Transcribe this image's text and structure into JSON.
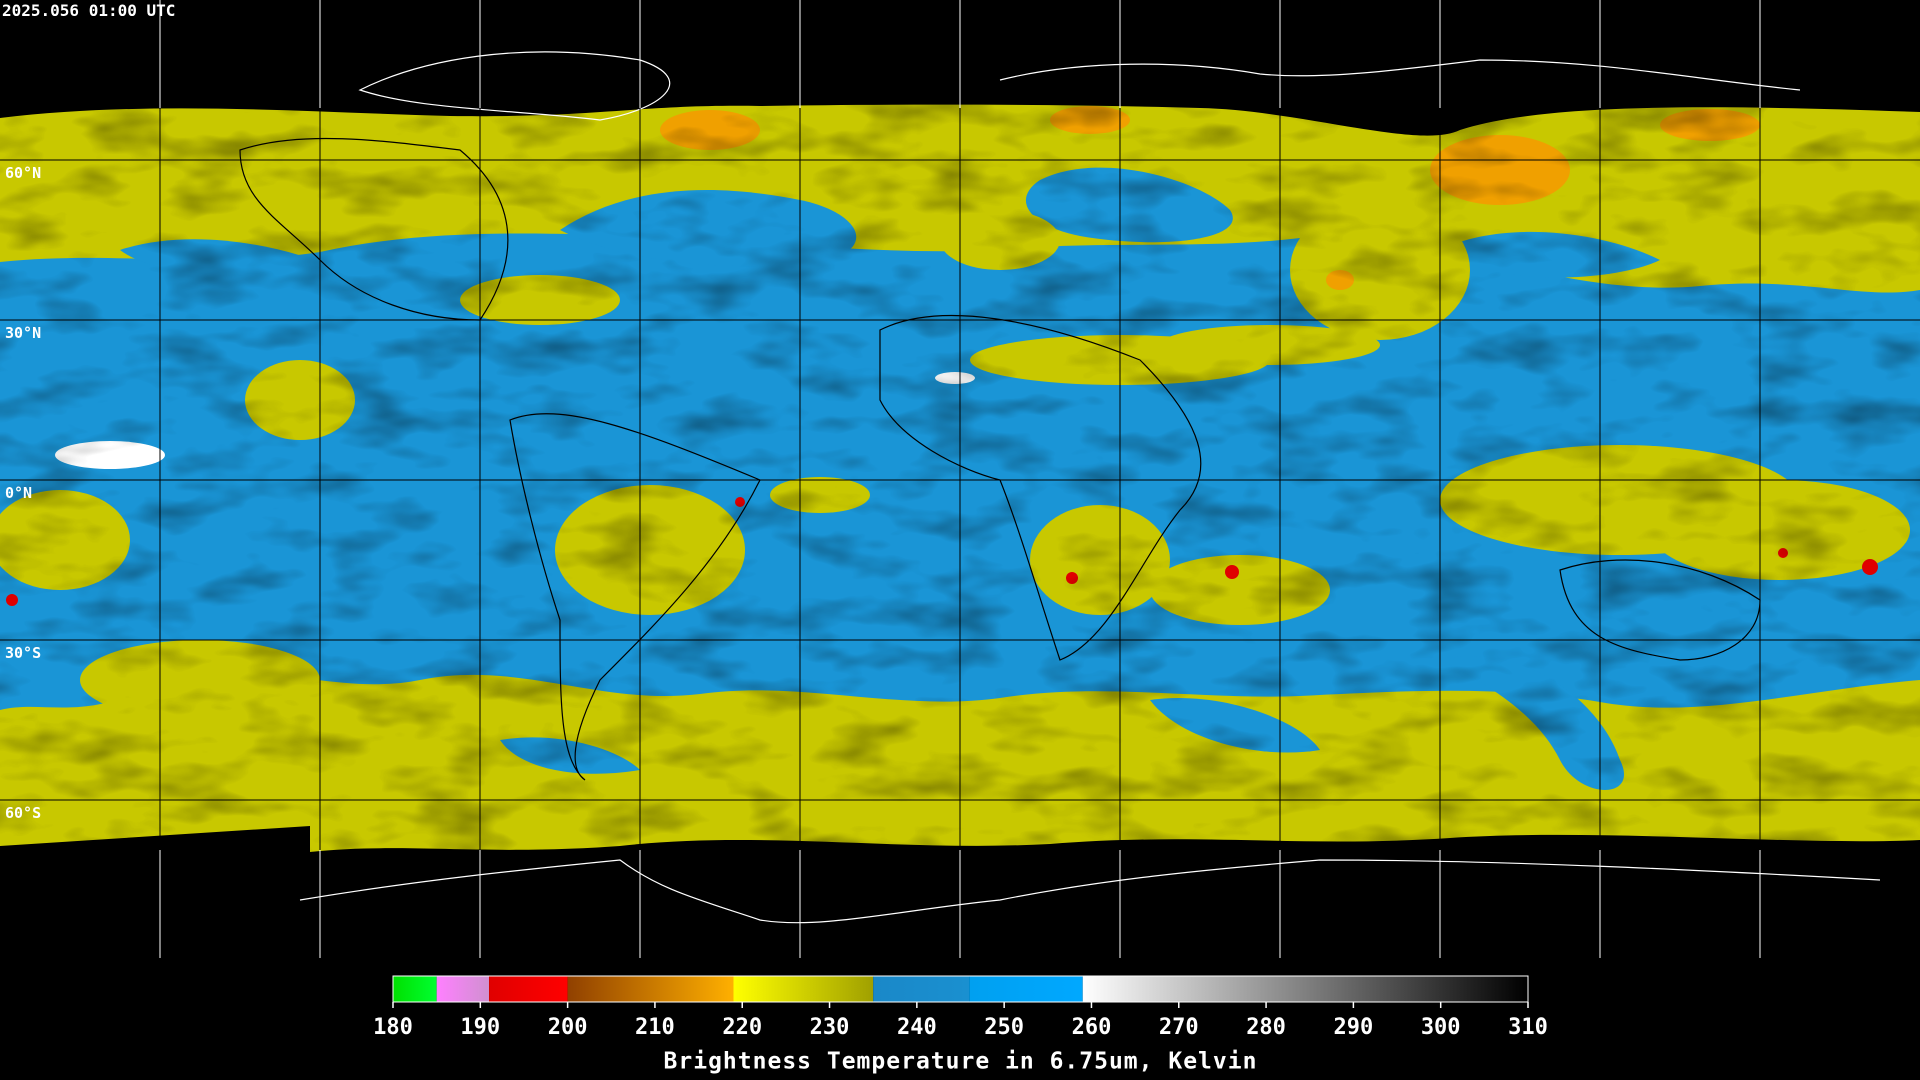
{
  "timestamp": "2025.056 01:00 UTC",
  "latitude_labels": [
    "60°N",
    "30°N",
    "0°N",
    "30°S",
    "60°S"
  ],
  "colorbar": {
    "title": "Brightness Temperature in 6.75um, Kelvin",
    "range": [
      180,
      310
    ],
    "ticks": [
      180,
      190,
      200,
      210,
      220,
      230,
      240,
      250,
      260,
      270,
      280,
      290,
      300,
      310
    ],
    "segments": [
      {
        "from": 180,
        "to": 185,
        "color_start": "#00e000",
        "color_end": "#00ff30"
      },
      {
        "from": 185,
        "to": 191,
        "color_start": "#ff80ff",
        "color_end": "#d090d0"
      },
      {
        "from": 191,
        "to": 200,
        "color_start": "#e00000",
        "color_end": "#ff0000"
      },
      {
        "from": 200,
        "to": 219,
        "color_start": "#904000",
        "color_end": "#ffb000"
      },
      {
        "from": 219,
        "to": 235,
        "color_start": "#ffff00",
        "color_end": "#a0a000"
      },
      {
        "from": 235,
        "to": 246,
        "color_start": "#1a88c8",
        "color_end": "#1a90d0"
      },
      {
        "from": 246,
        "to": 259,
        "color_start": "#00a0f0",
        "color_end": "#00a8ff"
      },
      {
        "from": 259,
        "to": 310,
        "color_start": "#ffffff",
        "color_end": "#000000"
      }
    ]
  }
}
